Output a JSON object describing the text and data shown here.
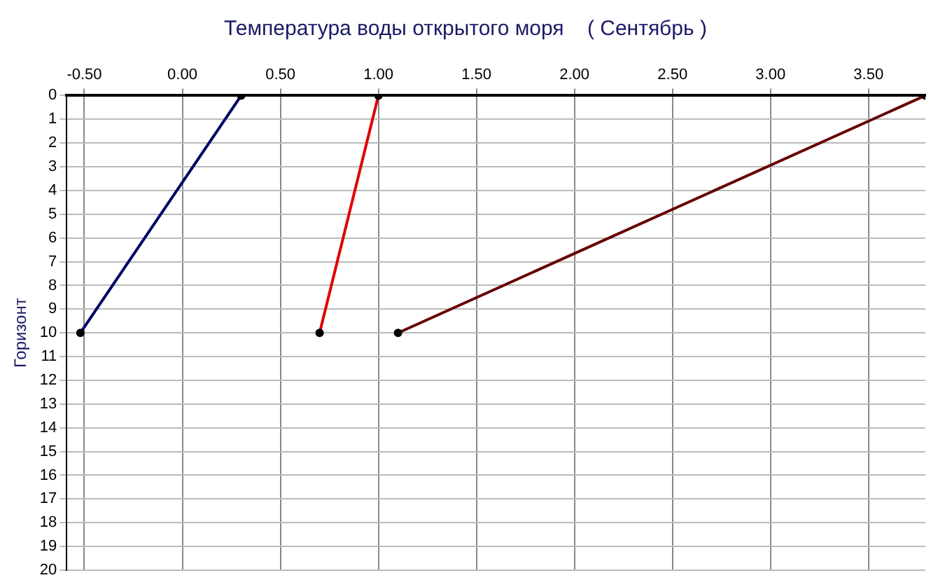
{
  "chart_data": {
    "type": "line",
    "title": "Температура воды открытого моря    ( Сентябрь )",
    "ylabel": "Горизонт",
    "xlim": [
      -0.59,
      3.79
    ],
    "xticks": [
      {
        "value": -0.5,
        "label": "-0.50"
      },
      {
        "value": 0,
        "label": "0.00"
      },
      {
        "value": 0.5,
        "label": "0.50"
      },
      {
        "value": 1,
        "label": "1.00"
      },
      {
        "value": 1.5,
        "label": "1.50"
      },
      {
        "value": 2,
        "label": "2.00"
      },
      {
        "value": 2.5,
        "label": "2.50"
      },
      {
        "value": 3,
        "label": "3.00"
      },
      {
        "value": 3.5,
        "label": "3.50"
      }
    ],
    "ylim": [
      20,
      0
    ],
    "yticks": [
      0,
      1,
      2,
      3,
      4,
      5,
      6,
      7,
      8,
      9,
      10,
      11,
      12,
      13,
      14,
      15,
      16,
      17,
      18,
      19,
      20
    ],
    "grid": true,
    "legend": false,
    "marker": "circle",
    "line_style": "solid",
    "series": [
      {
        "color": "#000066",
        "x": [
          0.3,
          -0.52
        ],
        "values": [
          0,
          10
        ]
      },
      {
        "color": "#e00000",
        "x": [
          1.0,
          0.7
        ],
        "values": [
          0,
          10
        ]
      },
      {
        "color": "#660000",
        "x": [
          3.79,
          1.1
        ],
        "values": [
          0,
          10
        ]
      }
    ]
  }
}
